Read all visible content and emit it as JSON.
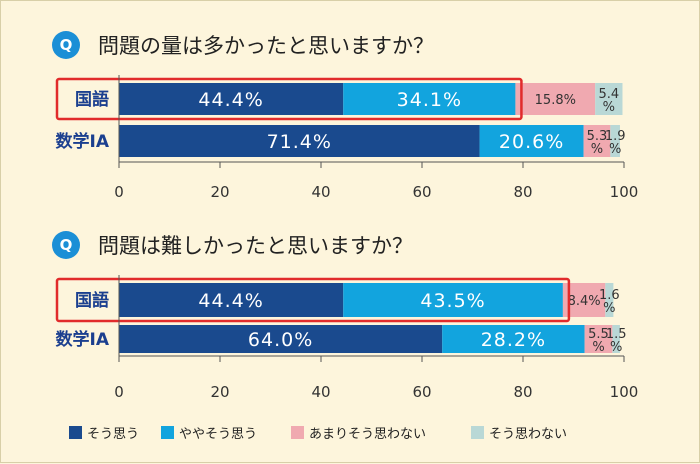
{
  "colors": {
    "so_omou": "#1a4a8e",
    "yaya": "#12a4de",
    "amari": "#f0a9b0",
    "omowanai": "#b9d8d6",
    "highlight": "#e12b2b",
    "q_circle": "#1b8fd6"
  },
  "legend": [
    "そう思う",
    "ややそう思う",
    "あまりそう思わない",
    "そう思わない"
  ],
  "chart_data": [
    {
      "type": "bar",
      "orientation": "horizontal",
      "stacked": true,
      "title": "問題の量は多かったと思いますか？",
      "q_badge": "Q",
      "categories": [
        "国語",
        "数学IA"
      ],
      "highlighted_category": "国語",
      "xlim": [
        0,
        100
      ],
      "xticks": [
        0,
        20,
        40,
        60,
        80,
        100
      ],
      "series": [
        {
          "name": "そう思う",
          "values": [
            44.4,
            71.4
          ],
          "labels": [
            "44.4%",
            "71.4%"
          ]
        },
        {
          "name": "ややそう思う",
          "values": [
            34.1,
            20.6
          ],
          "labels": [
            "34.1%",
            "20.6%"
          ]
        },
        {
          "name": "あまりそう思わない",
          "values": [
            15.8,
            5.3
          ],
          "labels": [
            "15.8%",
            "5.3%"
          ]
        },
        {
          "name": "そう思わない",
          "values": [
            5.4,
            1.9
          ],
          "labels": [
            "5.4%",
            "1.9%"
          ]
        }
      ]
    },
    {
      "type": "bar",
      "orientation": "horizontal",
      "stacked": true,
      "title": "問題は難しかったと思いますか？",
      "q_badge": "Q",
      "categories": [
        "国語",
        "数学IA"
      ],
      "highlighted_category": "国語",
      "xlim": [
        0,
        100
      ],
      "xticks": [
        0,
        20,
        40,
        60,
        80,
        100
      ],
      "series": [
        {
          "name": "そう思う",
          "values": [
            44.4,
            64.0
          ],
          "labels": [
            "44.4%",
            "64.0%"
          ]
        },
        {
          "name": "ややそう思う",
          "values": [
            43.5,
            28.2
          ],
          "labels": [
            "43.5%",
            "28.2%"
          ]
        },
        {
          "name": "あまりそう思わない",
          "values": [
            8.4,
            5.5
          ],
          "labels": [
            "8.4%",
            "5.5%"
          ]
        },
        {
          "name": "そう思わない",
          "values": [
            1.6,
            1.5
          ],
          "labels": [
            "1.6%",
            "1.5%"
          ]
        }
      ]
    }
  ]
}
